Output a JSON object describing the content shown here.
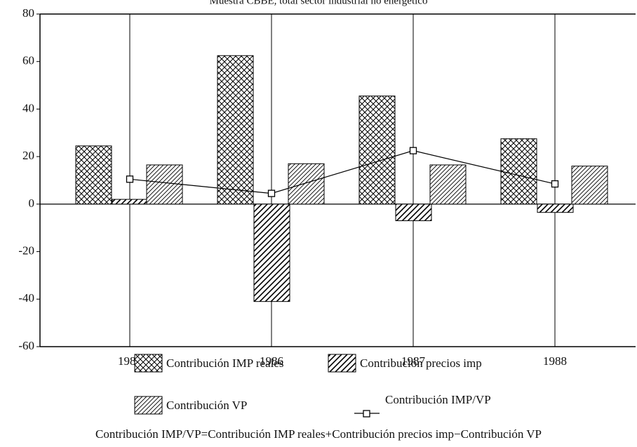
{
  "chart_data": {
    "type": "bar",
    "title": "Muestra CBBE, total sector industrial no energético",
    "categories": [
      "1985",
      "1986",
      "1987",
      "1988"
    ],
    "series": [
      {
        "name": "Contribución IMP reales",
        "color": "#000000",
        "pattern": "crosshatch",
        "values": [
          24.5,
          62.5,
          45.5,
          27.5
        ]
      },
      {
        "name": "Contribución precios imp",
        "color": "#000000",
        "pattern": "diagonal",
        "values": [
          2,
          -41,
          -7,
          -3.5
        ]
      },
      {
        "name": "Contribución VP",
        "color": "#000000",
        "pattern": "fine-diagonal",
        "values": [
          16.5,
          17,
          16.5,
          16
        ]
      },
      {
        "name": "Contribución IMP/VP",
        "color": "#000000",
        "type": "line",
        "values": [
          10.5,
          4.5,
          22.5,
          8.5
        ]
      }
    ],
    "ylim": [
      -60,
      80
    ],
    "yticks": [
      -60,
      -40,
      -20,
      0,
      20,
      40,
      60,
      80
    ],
    "footnote": "Contribución IMP/VP=Contribución IMP reales+Contribución precios imp−Contribución VP"
  }
}
